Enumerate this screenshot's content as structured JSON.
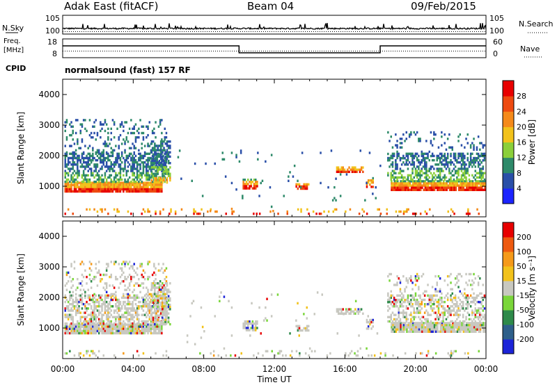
{
  "header": {
    "title": "Adak East (fitACF)",
    "beam": "Beam 04",
    "date": "09/Feb/2015"
  },
  "labels": {
    "nsky": "N.Sky",
    "nsearch": "N.Search",
    "freq_line1": "Freq.",
    "freq_line2": "[MHz]",
    "nave": "Nave",
    "cpid": "CPID",
    "cpid_value": "normalsound (fast) 157 RF"
  },
  "chart_data": [
    {
      "type": "line",
      "name": "noise panel",
      "yticks_left": [
        "10^5",
        "10^0"
      ],
      "yticks_right": [
        "10^5",
        "10^0"
      ]
    },
    {
      "type": "line",
      "name": "frequency / nave panel",
      "yticks_left": [
        "18",
        "8"
      ],
      "yticks_right": [
        "60",
        "0"
      ],
      "freq_steps": [
        {
          "x_start": 0,
          "x_end": 10,
          "level": "high"
        },
        {
          "x_start": 10,
          "x_end": 18,
          "level": "low"
        },
        {
          "x_start": 18,
          "x_end": 24,
          "level": "high"
        }
      ]
    },
    {
      "type": "heatmap",
      "name": "power",
      "ylabel": "Slant Range [km]",
      "yticks": [
        1000,
        2000,
        3000,
        4000
      ],
      "ylim": [
        0,
        4500
      ],
      "colorbar_label": "Power [dB]",
      "colorbar_ticks": [
        4,
        8,
        12,
        16,
        20,
        24,
        28
      ],
      "colors": [
        "#1c24ff",
        "#2a4fa8",
        "#2e8a6a",
        "#8bcf3a",
        "#f2c21b",
        "#f58a1a",
        "#ee4a10",
        "#e80000"
      ]
    },
    {
      "type": "heatmap",
      "name": "velocity",
      "ylabel": "Slant Range [km]",
      "yticks": [
        1000,
        2000,
        3000,
        4000
      ],
      "ylim": [
        0,
        4500
      ],
      "colorbar_label": "Velocity [m s⁻¹]",
      "colorbar_ticks": [
        200,
        100,
        50,
        15,
        -15,
        -50,
        -100,
        -200
      ],
      "colors": [
        "#1c24d8",
        "#2e5f8a",
        "#2e8a4a",
        "#7ad63a",
        "#c8c8c0",
        "#f2c21b",
        "#f59a1a",
        "#ee5a10",
        "#e80000"
      ]
    }
  ],
  "xaxis": {
    "label": "Time UT",
    "ticks": [
      "00:00",
      "04:00",
      "08:00",
      "12:00",
      "16:00",
      "20:00",
      "00:00"
    ]
  }
}
